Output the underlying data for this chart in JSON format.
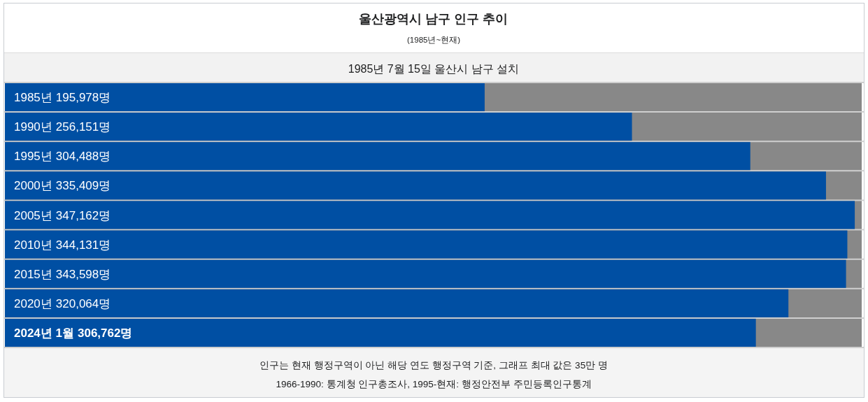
{
  "chart_data": {
    "type": "bar",
    "orientation": "horizontal",
    "title": "울산광역시 남구 인구 추이",
    "subtitle": "(1985년~현재)",
    "categories": [
      "1985년",
      "1990년",
      "1995년",
      "2000년",
      "2005년",
      "2010년",
      "2015년",
      "2020년",
      "2024년 1월"
    ],
    "values": [
      195978,
      256151,
      304488,
      335409,
      347162,
      344131,
      343598,
      320064,
      306762
    ],
    "value_labels": [
      "195,978명",
      "256,151명",
      "304,488명",
      "335,409명",
      "347,162명",
      "344,131명",
      "343,598명",
      "320,064명",
      "306,762명"
    ],
    "color": "#004fa3",
    "xlim": [
      0,
      350000
    ],
    "tick_labels": "y",
    "annotations": [
      "1985년 7월 15일 울산시 남구 설치",
      "인구는 현재 행정구역이 아닌 해당 연도 행정구역 기준, 그래프 최대 값은 35만 명",
      "1966-1990: 통계청 인구총조사, 1995-현재: 행정안전부 주민등록인구통계"
    ]
  }
}
